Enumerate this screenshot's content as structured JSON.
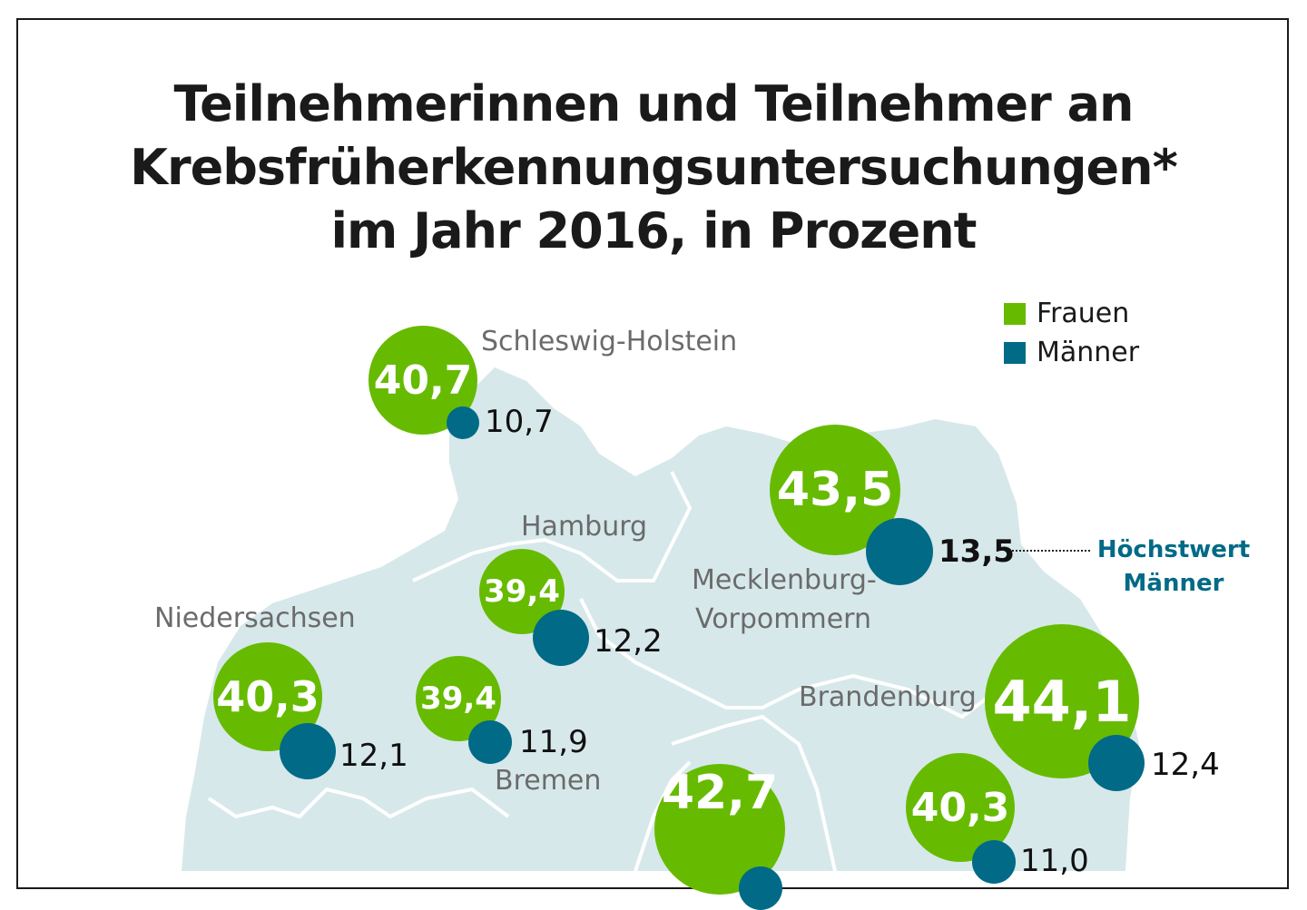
{
  "title": {
    "line1": "Teilnehmerinnen und Teilnehmer an",
    "line2": "Krebsfrüherkennungsuntersuchungen*",
    "line3": "im Jahr 2016, in Prozent"
  },
  "legend": {
    "frauen": {
      "label": "Frauen",
      "color": "#66bb00"
    },
    "maenner": {
      "label": "Männer",
      "color": "#006a87"
    }
  },
  "annotation": {
    "line1": "Höchstwert",
    "line2": "Männer"
  },
  "map_background_color": "#d6e8ea",
  "states": {
    "schleswig_holstein": {
      "label": "Schleswig-Holstein",
      "frauen": "40,7",
      "maenner": "10,7"
    },
    "hamburg": {
      "label": "Hamburg",
      "frauen": "39,4",
      "maenner": "12,2"
    },
    "niedersachsen": {
      "label": "Niedersachsen",
      "frauen": "40,3",
      "maenner": "12,1"
    },
    "bremen": {
      "label": "Bremen",
      "frauen": "39,4",
      "maenner": "11,9"
    },
    "mecklenburg_vorpommern": {
      "label_line1": "Mecklenburg-",
      "label_line2": "Vorpommern",
      "frauen": "43,5",
      "maenner": "13,5"
    },
    "brandenburg": {
      "label": "Brandenburg",
      "frauen": "44,1",
      "maenner": "12,4"
    },
    "unlabeled_center": {
      "frauen": "42,7"
    },
    "unlabeled_east": {
      "frauen": "40,3",
      "maenner": "11,0"
    }
  }
}
